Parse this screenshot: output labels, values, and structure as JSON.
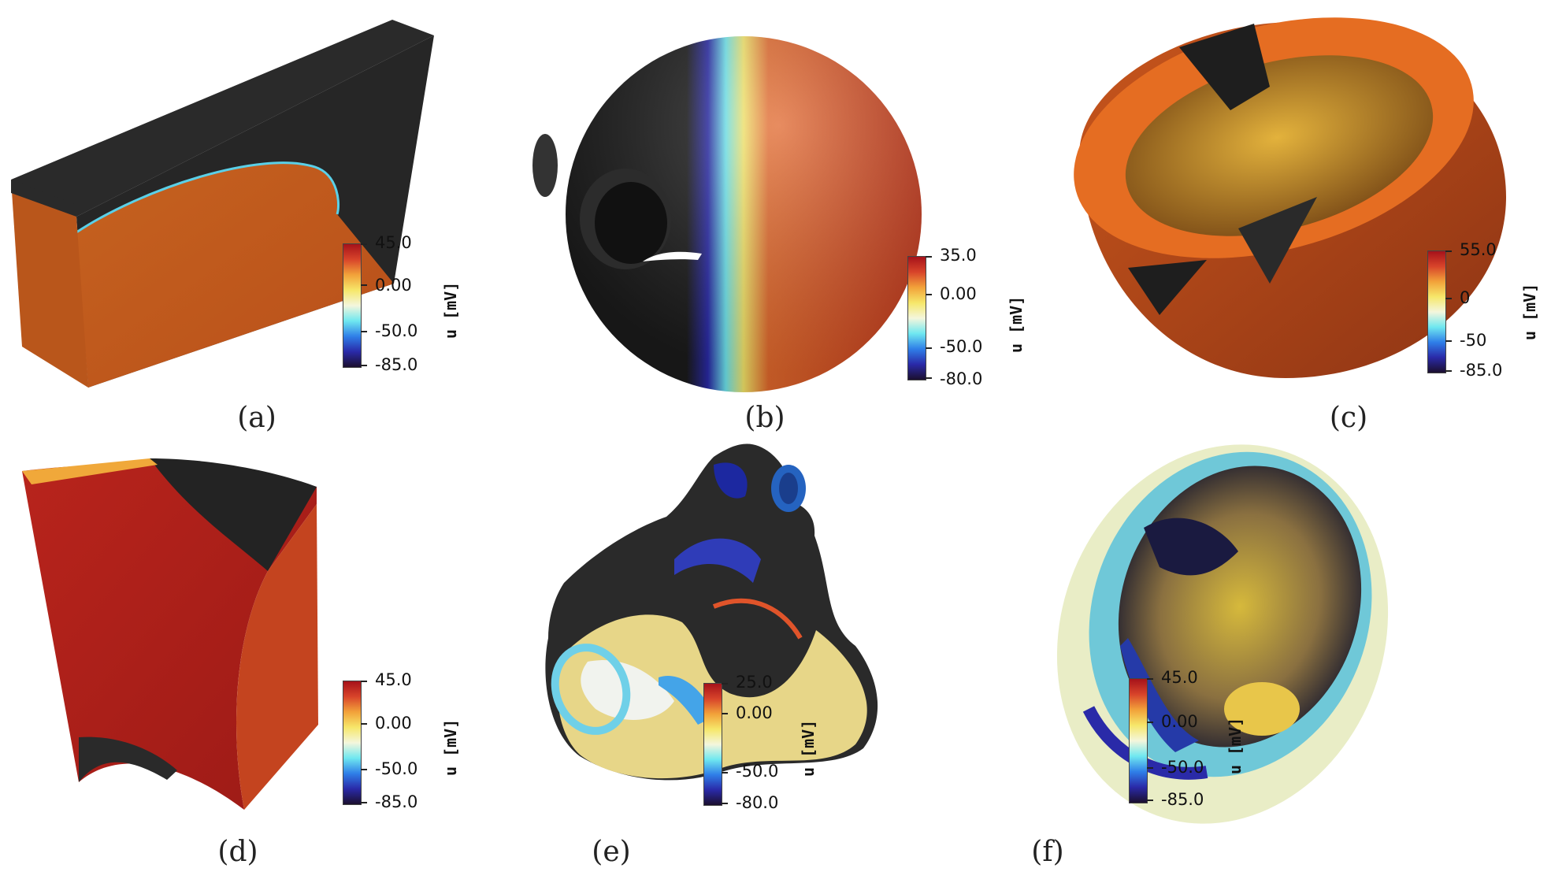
{
  "colormap": [
    "#1b0f2e",
    "#2a2aa8",
    "#2f7fe8",
    "#6fe8f0",
    "#f4f6dc",
    "#f6e76a",
    "#f2a23a",
    "#d8442a",
    "#a6121a"
  ],
  "panels": [
    {
      "caption": "(a)",
      "unit": "u [mV]",
      "ticks": [
        "45.0",
        "0.00",
        "-50.0",
        "-85.0"
      ]
    },
    {
      "caption": "(b)",
      "unit": "u [mV]",
      "ticks": [
        "35.0",
        "0.00",
        "-50.0",
        "-80.0"
      ]
    },
    {
      "caption": "(c)",
      "unit": "u [mV]",
      "ticks": [
        "55.0",
        "0",
        "-50",
        "-85.0"
      ]
    },
    {
      "caption": "(d)",
      "unit": "u [mV]",
      "ticks": [
        "45.0",
        "0.00",
        "-50.0",
        "-85.0"
      ]
    },
    {
      "caption": "(e)",
      "unit": "u [mV]",
      "ticks": [
        "25.0",
        "0.00",
        "-50.0",
        "-80.0"
      ]
    },
    {
      "caption": "(f)",
      "unit": "u [mV]",
      "ticks": [
        "45.0",
        "0.00",
        "-50.0",
        "-85.0"
      ]
    }
  ]
}
